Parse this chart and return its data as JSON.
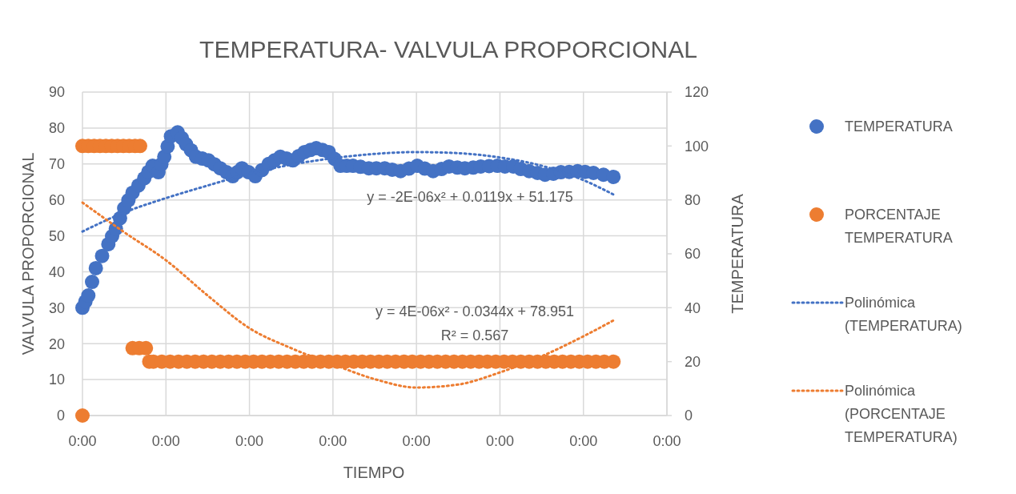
{
  "chart_data": {
    "type": "scatter",
    "title": "TEMPERATURA- VALVULA PROPORCIONAL",
    "xlabel": "TIEMPO",
    "ylabel": "VALVULA PROPORCIONAL",
    "y2label": "TEMPERATURA",
    "xlim": [
      0,
      7
    ],
    "xticks": [
      {
        "value": 0,
        "label": "0:00"
      },
      {
        "value": 1,
        "label": "0:00"
      },
      {
        "value": 2,
        "label": "0:00"
      },
      {
        "value": 3,
        "label": "0:00"
      },
      {
        "value": 4,
        "label": "0:00"
      },
      {
        "value": 5,
        "label": "0:00"
      },
      {
        "value": 6,
        "label": "0:00"
      },
      {
        "value": 7,
        "label": "0:00"
      }
    ],
    "ylim": [
      0,
      90
    ],
    "yticks": [
      0,
      10,
      20,
      30,
      40,
      50,
      60,
      70,
      80,
      90
    ],
    "y2lim": [
      0,
      120
    ],
    "y2ticks": [
      0,
      20,
      40,
      60,
      80,
      100,
      120
    ],
    "grid": true,
    "legend": "right",
    "marker": "circle",
    "series": [
      {
        "name": "TEMPERATURA",
        "color": "#4472c4",
        "x": [
          0,
          0.035,
          0.07,
          0.115,
          0.16,
          0.235,
          0.31,
          0.355,
          0.4,
          0.45,
          0.5,
          0.55,
          0.6,
          0.67,
          0.74,
          0.79,
          0.84,
          0.91,
          0.945,
          0.98,
          1.02,
          1.06,
          1.14,
          1.19,
          1.24,
          1.3,
          1.36,
          1.435,
          1.51,
          1.58,
          1.65,
          1.725,
          1.8,
          1.855,
          1.91,
          1.99,
          2.07,
          2.15,
          2.23,
          2.3,
          2.37,
          2.445,
          2.52,
          2.59,
          2.66,
          2.73,
          2.8,
          2.875,
          2.95,
          3.02,
          3.09,
          3.165,
          3.24,
          3.33,
          3.43,
          3.52,
          3.62,
          3.71,
          3.81,
          3.91,
          4.01,
          4.1,
          4.2,
          4.3,
          4.39,
          4.49,
          4.58,
          4.68,
          4.77,
          4.87,
          4.97,
          5.06,
          5.16,
          5.25,
          5.35,
          5.45,
          5.54,
          5.64,
          5.73,
          5.83,
          5.93,
          6.02,
          6.12,
          6.24,
          6.36
        ],
        "values": [
          30,
          31.7,
          33.4,
          37.2,
          41,
          44.4,
          47.7,
          49.9,
          52,
          54.9,
          57.7,
          59.9,
          62,
          64,
          66,
          67.8,
          69.5,
          67.7,
          69.9,
          72,
          74.9,
          77.7,
          78.8,
          77.2,
          75.5,
          73.8,
          72,
          71.5,
          71,
          69.9,
          68.8,
          67.7,
          66.6,
          67.7,
          68.8,
          67.7,
          66.6,
          68.3,
          70,
          71,
          72,
          71.5,
          71,
          72.2,
          73.3,
          73.9,
          74.4,
          73.9,
          73.3,
          71.4,
          69.5,
          69.5,
          69.5,
          69.2,
          68.8,
          68.8,
          68.8,
          68.4,
          68,
          68.7,
          69.5,
          68.7,
          68,
          68.6,
          69.3,
          69,
          68.8,
          69,
          69.3,
          69.4,
          69.5,
          69.3,
          69.3,
          68.6,
          68,
          67.5,
          67,
          67.3,
          67.7,
          67.8,
          68,
          67.8,
          67.5,
          67,
          66.4
        ]
      },
      {
        "name": "PORCENTAJE TEMPERATURA",
        "axis": "y2",
        "color": "#ed7d31",
        "x": [
          0,
          0,
          0.07,
          0.14,
          0.21,
          0.28,
          0.35,
          0.42,
          0.49,
          0.56,
          0.63,
          0.69,
          0.6,
          0.68,
          0.76,
          0.8,
          0.85,
          0.95,
          1.05,
          1.15,
          1.25,
          1.35,
          1.45,
          1.55,
          1.65,
          1.75,
          1.85,
          1.95,
          2.05,
          2.15,
          2.25,
          2.35,
          2.45,
          2.55,
          2.65,
          2.75,
          2.85,
          2.95,
          3.05,
          3.15,
          3.25,
          3.35,
          3.45,
          3.55,
          3.65,
          3.75,
          3.85,
          3.95,
          4.05,
          4.15,
          4.25,
          4.35,
          4.45,
          4.55,
          4.65,
          4.75,
          4.85,
          4.95,
          5.05,
          5.15,
          5.25,
          5.35,
          5.45,
          5.55,
          5.65,
          5.75,
          5.85,
          5.95,
          6.05,
          6.15,
          6.25,
          6.36
        ],
        "values": [
          0,
          100,
          100,
          100,
          100,
          100,
          100,
          100,
          100,
          100,
          100,
          100,
          25,
          25,
          25,
          20,
          20,
          20,
          20,
          20,
          20,
          20,
          20,
          20,
          20,
          20,
          20,
          20,
          20,
          20,
          20,
          20,
          20,
          20,
          20,
          20,
          20,
          20,
          20,
          20,
          20,
          20,
          20,
          20,
          20,
          20,
          20,
          20,
          20,
          20,
          20,
          20,
          20,
          20,
          20,
          20,
          20,
          20,
          20,
          20,
          20,
          20,
          20,
          20,
          20,
          20,
          20,
          20,
          20,
          20,
          20,
          20
        ]
      },
      {
        "name": "Polinómica (TEMPERATURA)",
        "type": "line",
        "marker": "none",
        "line_style": "dotted",
        "color": "#4472c4",
        "x": [
          0,
          0.5,
          1,
          1.5,
          2,
          2.5,
          3,
          3.5,
          4,
          4.5,
          5,
          5.5,
          6,
          6.36
        ],
        "values": [
          51.2,
          56.5,
          60.5,
          64,
          67.3,
          69.8,
          71.6,
          72.8,
          73.3,
          73,
          71.8,
          69.5,
          65.5,
          61.5
        ]
      },
      {
        "name": "Polinómica (PORCENTAJE TEMPERATURA)",
        "type": "line",
        "marker": "none",
        "line_style": "dotted",
        "axis": "y2",
        "color": "#ed7d31",
        "x": [
          0,
          0.5,
          1,
          1.5,
          2,
          2.5,
          3,
          3.5,
          4,
          4.5,
          5,
          5.5,
          6,
          6.36
        ],
        "values": [
          79,
          68,
          57.6,
          44.5,
          32.4,
          25,
          19,
          13.5,
          10.4,
          11.5,
          16,
          22,
          29.4,
          35.3
        ]
      }
    ],
    "annotations": [
      "y = -2E-06x² + 0.0119x + 51.175",
      "y = 4E-06x² - 0.0344x + 78.951",
      "R² = 0.567"
    ]
  }
}
